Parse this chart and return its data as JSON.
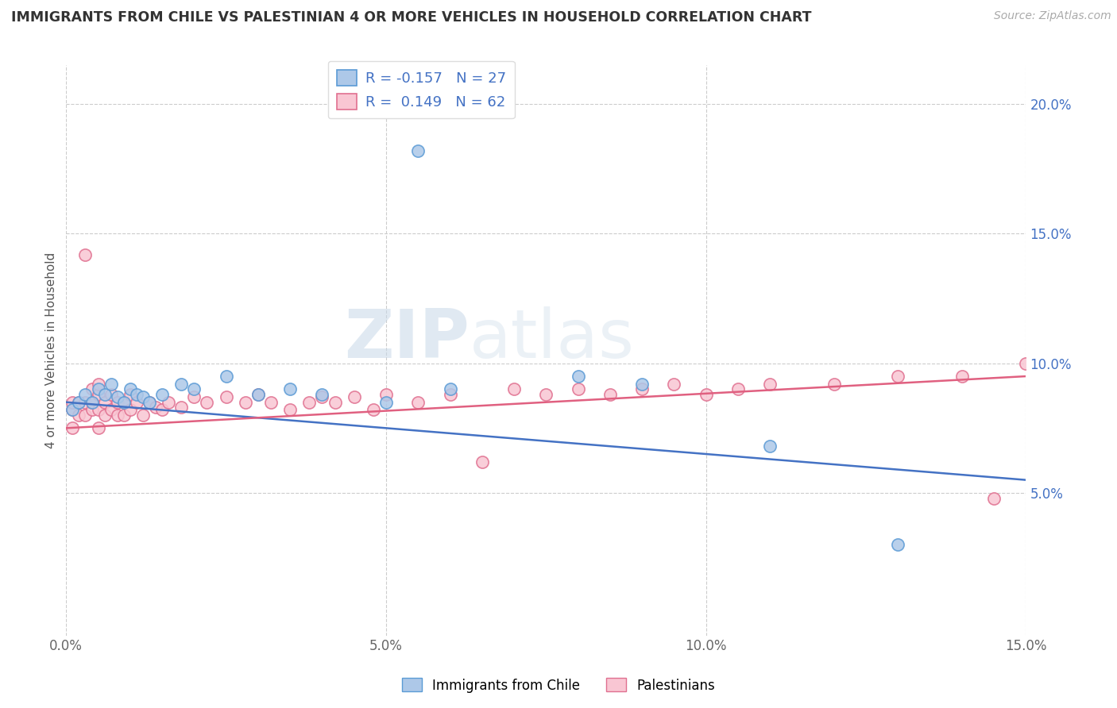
{
  "title": "IMMIGRANTS FROM CHILE VS PALESTINIAN 4 OR MORE VEHICLES IN HOUSEHOLD CORRELATION CHART",
  "source": "Source: ZipAtlas.com",
  "ylabel": "4 or more Vehicles in Household",
  "xlim": [
    0.0,
    0.15
  ],
  "ylim": [
    -0.005,
    0.215
  ],
  "xticks": [
    0.0,
    0.05,
    0.1,
    0.15
  ],
  "xtick_labels": [
    "0.0%",
    "5.0%",
    "10.0%",
    "15.0%"
  ],
  "yticks_right": [
    0.05,
    0.1,
    0.15,
    0.2
  ],
  "ytick_labels_right": [
    "5.0%",
    "10.0%",
    "15.0%",
    "20.0%"
  ],
  "chile_color": "#adc8e8",
  "chile_edge_color": "#5b9bd5",
  "pales_color": "#f9c6d3",
  "pales_edge_color": "#e07090",
  "chile_line_color": "#4472c4",
  "pales_line_color": "#e06080",
  "chile_R": -0.157,
  "chile_N": 27,
  "pales_R": 0.149,
  "pales_N": 62,
  "legend_label_chile": "Immigrants from Chile",
  "legend_label_pales": "Palestinians",
  "watermark_zip": "ZIP",
  "watermark_atlas": "atlas",
  "chile_scatter_x": [
    0.001,
    0.002,
    0.003,
    0.004,
    0.005,
    0.006,
    0.007,
    0.008,
    0.009,
    0.01,
    0.011,
    0.012,
    0.013,
    0.015,
    0.018,
    0.02,
    0.025,
    0.03,
    0.035,
    0.04,
    0.05,
    0.055,
    0.06,
    0.08,
    0.09,
    0.11,
    0.13
  ],
  "chile_scatter_y": [
    0.082,
    0.085,
    0.088,
    0.085,
    0.09,
    0.088,
    0.092,
    0.087,
    0.085,
    0.09,
    0.088,
    0.087,
    0.085,
    0.088,
    0.092,
    0.09,
    0.095,
    0.088,
    0.09,
    0.088,
    0.085,
    0.182,
    0.09,
    0.095,
    0.092,
    0.068,
    0.03
  ],
  "pales_scatter_x": [
    0.001,
    0.001,
    0.001,
    0.002,
    0.002,
    0.003,
    0.003,
    0.003,
    0.004,
    0.004,
    0.004,
    0.005,
    0.005,
    0.005,
    0.005,
    0.006,
    0.006,
    0.007,
    0.007,
    0.008,
    0.008,
    0.009,
    0.009,
    0.01,
    0.01,
    0.011,
    0.012,
    0.013,
    0.014,
    0.015,
    0.016,
    0.018,
    0.02,
    0.022,
    0.025,
    0.028,
    0.03,
    0.032,
    0.035,
    0.038,
    0.04,
    0.042,
    0.045,
    0.048,
    0.05,
    0.055,
    0.06,
    0.065,
    0.07,
    0.075,
    0.08,
    0.085,
    0.09,
    0.095,
    0.1,
    0.105,
    0.11,
    0.12,
    0.13,
    0.14,
    0.145,
    0.15
  ],
  "pales_scatter_y": [
    0.075,
    0.082,
    0.085,
    0.08,
    0.085,
    0.08,
    0.085,
    0.142,
    0.082,
    0.085,
    0.09,
    0.075,
    0.082,
    0.088,
    0.092,
    0.08,
    0.085,
    0.082,
    0.088,
    0.08,
    0.085,
    0.08,
    0.085,
    0.082,
    0.088,
    0.085,
    0.08,
    0.085,
    0.083,
    0.082,
    0.085,
    0.083,
    0.087,
    0.085,
    0.087,
    0.085,
    0.088,
    0.085,
    0.082,
    0.085,
    0.087,
    0.085,
    0.087,
    0.082,
    0.088,
    0.085,
    0.088,
    0.062,
    0.09,
    0.088,
    0.09,
    0.088,
    0.09,
    0.092,
    0.088,
    0.09,
    0.092,
    0.092,
    0.095,
    0.095,
    0.048,
    0.1
  ]
}
